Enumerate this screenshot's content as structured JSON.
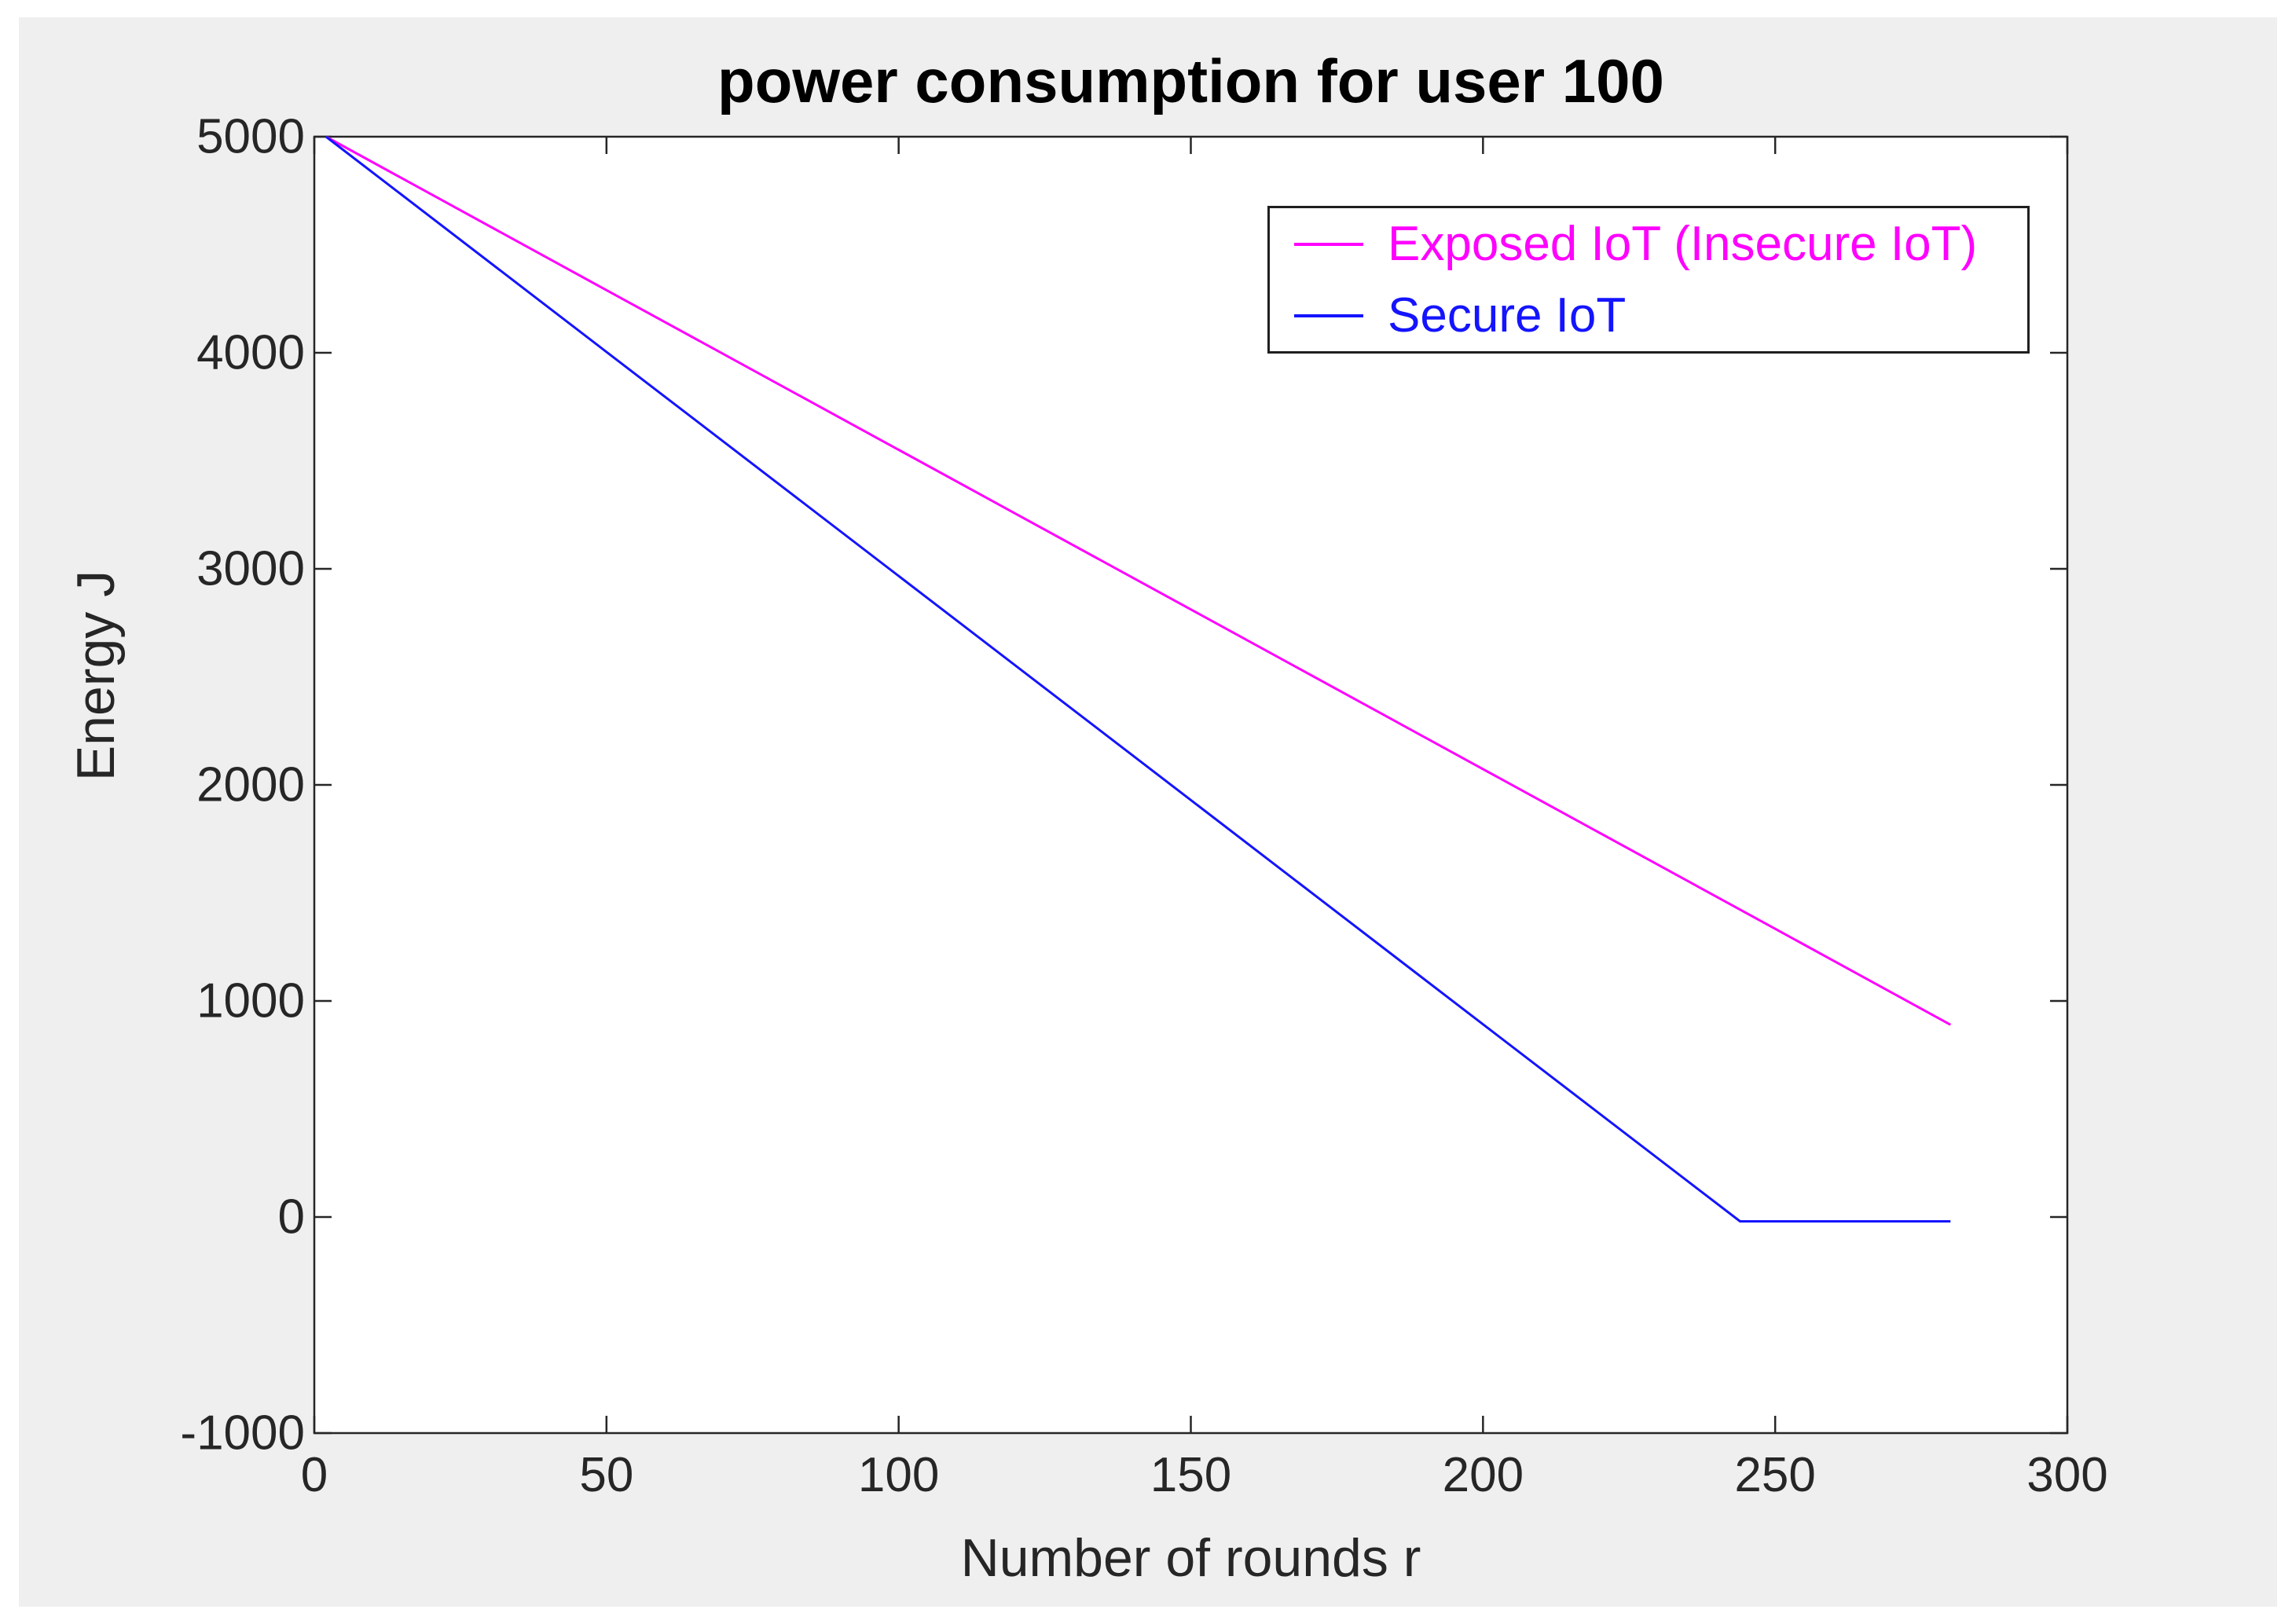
{
  "window": {
    "page_background": "#ffffff",
    "figure_background": "#efefef",
    "axis_color": "#262626"
  },
  "chart": {
    "title": "power consumption for user 100",
    "xlabel": "Number of rounds r",
    "ylabel": "Energy J",
    "x_ticks": {
      "values": [
        0,
        50,
        100,
        150,
        200,
        250,
        300
      ],
      "labels": [
        "0",
        "50",
        "100",
        "150",
        "200",
        "250",
        "300"
      ]
    },
    "y_ticks": {
      "values": [
        5000,
        4000,
        3000,
        2000,
        1000,
        0,
        -1000
      ],
      "labels": [
        "5000",
        "4000",
        "3000",
        "2000",
        "1000",
        "0",
        "-1000"
      ]
    }
  },
  "legend": {
    "items": [
      {
        "label": "Exposed IoT (Insecure IoT)",
        "color": "#ff00ff"
      },
      {
        "label": "Secure IoT",
        "color": "#1414ff"
      }
    ]
  },
  "chart_data": {
    "type": "line",
    "title": "power consumption for user 100",
    "xlabel": "Number of rounds r",
    "ylabel": "Energy J",
    "xlim": [
      0,
      300
    ],
    "ylim": [
      -1000,
      5000
    ],
    "grid": false,
    "legend_position": "upper right",
    "series": [
      {
        "name": "Exposed IoT (Insecure IoT)",
        "color": "#ff00ff",
        "points": [
          [
            2,
            5000
          ],
          [
            50,
            4290
          ],
          [
            100,
            3551
          ],
          [
            150,
            2812
          ],
          [
            200,
            2073
          ],
          [
            250,
            1334
          ],
          [
            280,
            890
          ]
        ]
      },
      {
        "name": "Secure IoT",
        "color": "#1414ff",
        "points": [
          [
            2,
            5000
          ],
          [
            50,
            4004
          ],
          [
            100,
            2967
          ],
          [
            150,
            1930
          ],
          [
            200,
            892
          ],
          [
            244,
            -20
          ],
          [
            280,
            -20
          ]
        ]
      }
    ]
  }
}
